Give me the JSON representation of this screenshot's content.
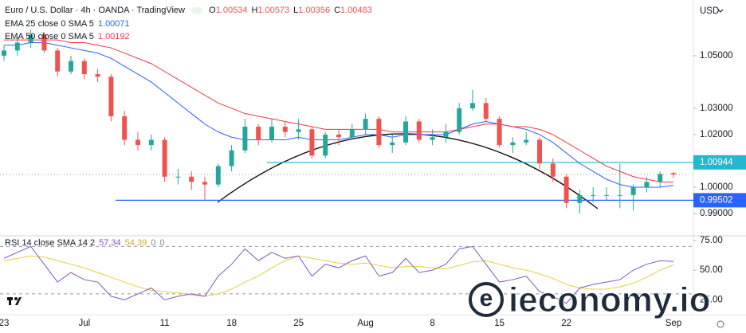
{
  "chart_data": [
    {
      "type": "candlestick",
      "title": "Euro / U.S. Dollar · 4h · OANDA · TradingView",
      "currency": "USD",
      "ohlc_prefixes": [
        "O",
        "H",
        "L",
        "C"
      ],
      "categories": [
        "23",
        null,
        null,
        null,
        null,
        null,
        "Jul",
        null,
        null,
        null,
        null,
        null,
        "11",
        null,
        null,
        null,
        null,
        "18",
        null,
        null,
        null,
        null,
        "25",
        null,
        null,
        null,
        null,
        "Aug",
        null,
        null,
        null,
        null,
        "8",
        null,
        null,
        null,
        null,
        "15",
        null,
        null,
        null,
        null,
        "22",
        null,
        null,
        null,
        null,
        null,
        null,
        null,
        "Sep"
      ],
      "open": [
        1.05,
        1.052,
        1.055,
        1.058,
        1.052,
        1.044,
        1.048,
        1.043,
        1.042,
        1.027,
        1.018,
        1.016,
        1.018,
        1.004,
        1.004,
        1.002,
        1.001,
        1.008,
        1.014,
        1.023,
        1.018,
        1.023,
        1.021,
        1.022,
        1.012,
        1.02,
        1.019,
        1.022,
        1.026,
        1.016,
        1.017,
        1.025,
        1.018,
        1.019,
        1.021,
        1.03,
        1.032,
        1.026,
        1.016,
        1.017,
        1.018,
        1.009,
        1.004,
        0.994,
        0.997,
        0.997,
        0.997,
        0.997,
        1.0,
        1.002,
        1.00534
      ],
      "high": [
        1.054,
        1.057,
        1.06,
        1.059,
        1.053,
        1.05,
        1.049,
        1.045,
        1.043,
        1.029,
        1.021,
        1.02,
        1.019,
        1.007,
        1.006,
        1.004,
        1.009,
        1.016,
        1.026,
        1.024,
        1.026,
        1.025,
        1.026,
        1.023,
        1.021,
        1.022,
        1.024,
        1.028,
        1.027,
        1.02,
        1.027,
        1.026,
        1.022,
        1.024,
        1.032,
        1.037,
        1.034,
        1.027,
        1.019,
        1.021,
        1.019,
        1.011,
        1.005,
        0.999,
        1.0,
        1.0,
        1.009,
        1.001,
        1.004,
        1.006,
        1.00573
      ],
      "low": [
        1.048,
        1.05,
        1.053,
        1.051,
        1.042,
        1.043,
        1.041,
        1.04,
        1.025,
        1.016,
        1.014,
        1.014,
        1.002,
        1.001,
        0.999,
        0.9952,
        1.0,
        1.006,
        1.013,
        1.016,
        1.017,
        1.019,
        1.018,
        1.011,
        1.011,
        1.016,
        1.018,
        1.02,
        1.015,
        1.013,
        1.016,
        1.017,
        1.016,
        1.017,
        1.02,
        1.029,
        1.025,
        1.015,
        1.013,
        1.016,
        1.007,
        1.002,
        0.992,
        0.99,
        0.994,
        0.995,
        0.992,
        0.991,
        0.998,
        1.0,
        1.00356
      ],
      "close": [
        1.052,
        1.055,
        1.058,
        1.052,
        1.044,
        1.048,
        1.043,
        1.042,
        1.027,
        1.018,
        1.016,
        1.018,
        1.004,
        1.004,
        1.002,
        1.001,
        1.008,
        1.014,
        1.023,
        1.018,
        1.023,
        1.021,
        1.022,
        1.012,
        1.02,
        1.019,
        1.022,
        1.026,
        1.016,
        1.017,
        1.025,
        1.018,
        1.019,
        1.021,
        1.03,
        1.032,
        1.026,
        1.016,
        1.017,
        1.018,
        1.009,
        1.004,
        0.994,
        0.997,
        0.997,
        0.997,
        0.997,
        1.0,
        1.002,
        1.005,
        1.00483
      ],
      "up_color": "#26a69a",
      "down_color": "#ef5350",
      "series": [
        {
          "name": "EMA 25 close 0 SMA 5",
          "color": "#2962ff",
          "values": [
            1.054,
            1.054,
            1.055,
            1.055,
            1.054,
            1.053,
            1.052,
            1.051,
            1.049,
            1.046,
            1.043,
            1.04,
            1.036,
            1.032,
            1.028,
            1.024,
            1.021,
            1.019,
            1.018,
            1.018,
            1.018,
            1.018,
            1.019,
            1.018,
            1.018,
            1.018,
            1.019,
            1.02,
            1.02,
            1.019,
            1.02,
            1.02,
            1.02,
            1.02,
            1.022,
            1.024,
            1.025,
            1.024,
            1.023,
            1.022,
            1.02,
            1.017,
            1.013,
            1.009,
            1.006,
            1.003,
            1.001,
            1.0,
            1.0,
            1.0,
            1.00071
          ]
        },
        {
          "name": "EMA 50 close 0 SMA 5",
          "color": "#f23645",
          "values": [
            1.056,
            1.056,
            1.056,
            1.056,
            1.056,
            1.055,
            1.055,
            1.054,
            1.053,
            1.051,
            1.049,
            1.047,
            1.044,
            1.041,
            1.038,
            1.035,
            1.032,
            1.03,
            1.028,
            1.027,
            1.026,
            1.025,
            1.024,
            1.023,
            1.022,
            1.022,
            1.022,
            1.022,
            1.022,
            1.021,
            1.021,
            1.021,
            1.021,
            1.021,
            1.022,
            1.023,
            1.024,
            1.024,
            1.023,
            1.023,
            1.022,
            1.02,
            1.017,
            1.014,
            1.011,
            1.008,
            1.006,
            1.004,
            1.003,
            1.002,
            1.00192
          ]
        }
      ],
      "levels": [
        {
          "value": 1.00944,
          "color": "#22b8cf"
        },
        {
          "value": 0.99502,
          "color": "#2962ff"
        }
      ],
      "ylim": [
        0.9818,
        1.0712
      ],
      "yticks": [
        {
          "value": 0.99,
          "label": "0.99000"
        },
        {
          "value": 1.0,
          "label": "1.00000"
        },
        {
          "value": 1.02,
          "label": "1.02000"
        },
        {
          "value": 1.03,
          "label": "1.03000"
        },
        {
          "value": 1.05,
          "label": "1.05000"
        }
      ],
      "grid": false
    },
    {
      "type": "line",
      "title": "RSI 14 close SMA 14 2",
      "legend_extra": [
        0,
        0
      ],
      "series": [
        {
          "color": "#7e57c2",
          "values": [
            60,
            65,
            70,
            55,
            40,
            48,
            42,
            40,
            28,
            25,
            30,
            35,
            25,
            28,
            30,
            28,
            45,
            55,
            68,
            58,
            65,
            60,
            62,
            45,
            55,
            52,
            58,
            62,
            45,
            48,
            60,
            48,
            50,
            55,
            68,
            70,
            55,
            40,
            42,
            45,
            32,
            28,
            22,
            35,
            38,
            40,
            42,
            50,
            55,
            58,
            57.34
          ]
        },
        {
          "color": "#e6cf3a",
          "values": [
            58,
            60,
            62,
            61,
            58,
            55,
            52,
            48,
            44,
            40,
            36,
            33,
            32,
            31,
            29,
            28,
            30,
            34,
            40,
            45,
            52,
            58,
            62,
            60,
            58,
            56,
            55,
            56,
            54,
            52,
            53,
            53,
            52,
            51,
            54,
            57,
            58,
            55,
            52,
            50,
            47,
            43,
            38,
            35,
            34,
            34,
            36,
            39,
            44,
            50,
            54.39
          ]
        }
      ],
      "levels": [
        70,
        30
      ],
      "ylim": [
        12.5,
        78.3
      ],
      "yticks": [
        {
          "value": 75,
          "label": "75.00"
        },
        {
          "value": 50,
          "label": "50.00"
        },
        {
          "value": 25,
          "label": "25.00"
        }
      ]
    }
  ],
  "watermark": {
    "logo": "e",
    "text": "ieconomy.io"
  }
}
